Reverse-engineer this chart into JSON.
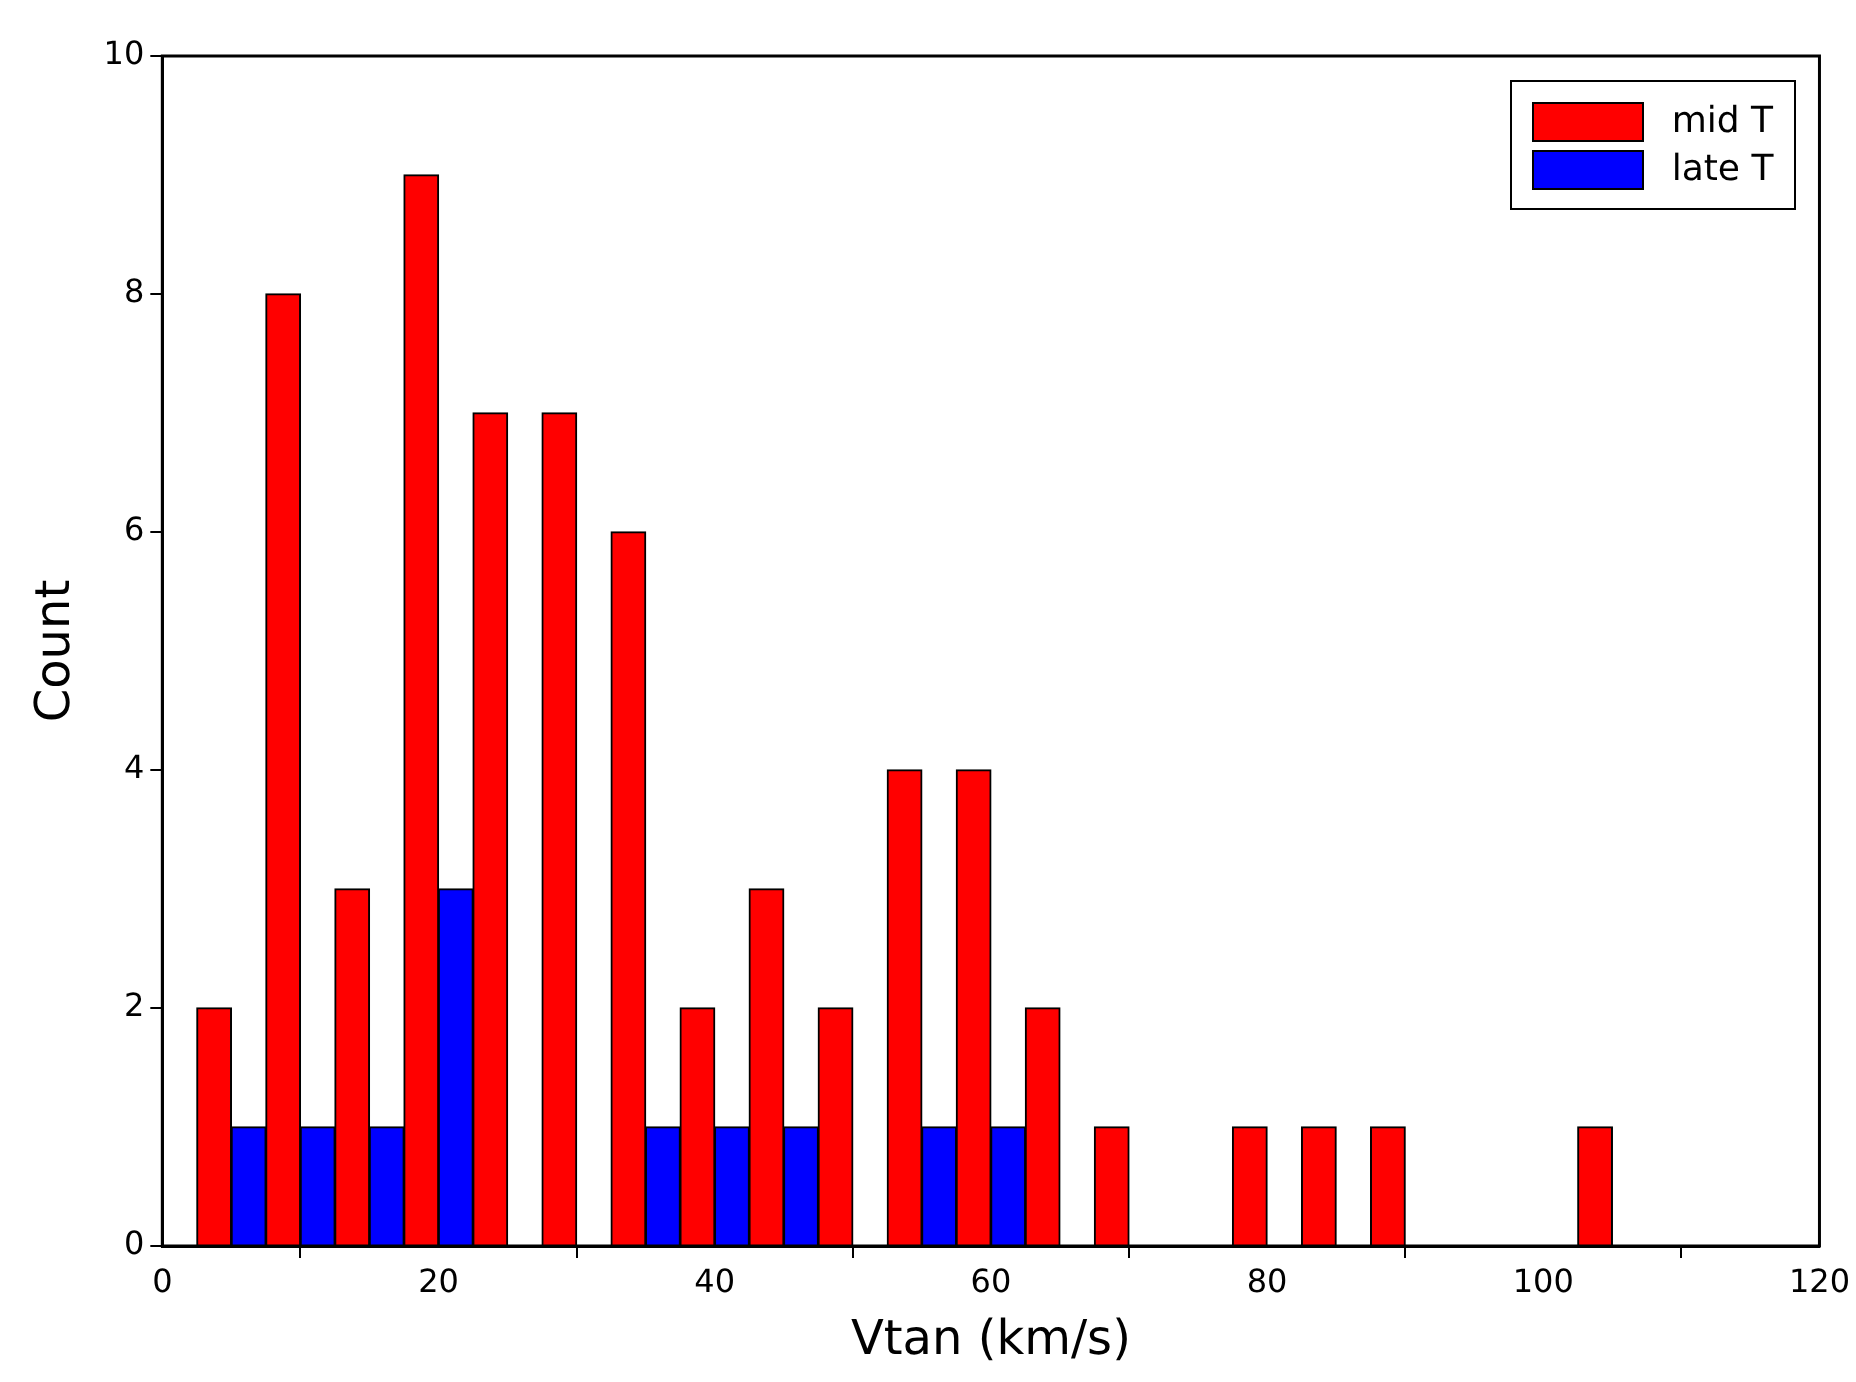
{
  "chart_data": {
    "type": "histogram",
    "xlabel": "Vtan (km/s)",
    "ylabel": "Count",
    "bins": [
      2.5,
      7.5,
      12.5,
      17.5,
      22.5,
      27.5,
      32.5,
      37.5,
      42.5,
      47.5,
      52.5,
      57.5,
      62.5,
      67.5,
      72.5,
      77.5,
      82.5,
      87.5,
      92.5,
      97.5,
      102.5,
      107.5
    ],
    "series": [
      {
        "name": "mid T",
        "color": "#ff0000",
        "values": [
          2,
          8,
          3,
          9,
          7,
          7,
          6,
          2,
          3,
          2,
          4,
          4,
          2,
          1,
          0,
          1,
          1,
          1,
          0,
          0,
          1
        ]
      },
      {
        "name": "late T",
        "color": "#0000ff",
        "values": [
          1,
          1,
          1,
          3,
          0,
          0,
          1,
          1,
          1,
          0,
          1,
          1,
          0,
          0,
          0,
          0,
          0,
          0,
          0,
          0,
          0
        ]
      }
    ],
    "xlim": [
      0,
      120
    ],
    "xticks": [
      0,
      20,
      40,
      60,
      80,
      100,
      120
    ],
    "ylim": [
      0,
      10
    ],
    "yticks": [
      0,
      2,
      4,
      6,
      8,
      10
    ],
    "grid": false,
    "legend": "top right"
  }
}
